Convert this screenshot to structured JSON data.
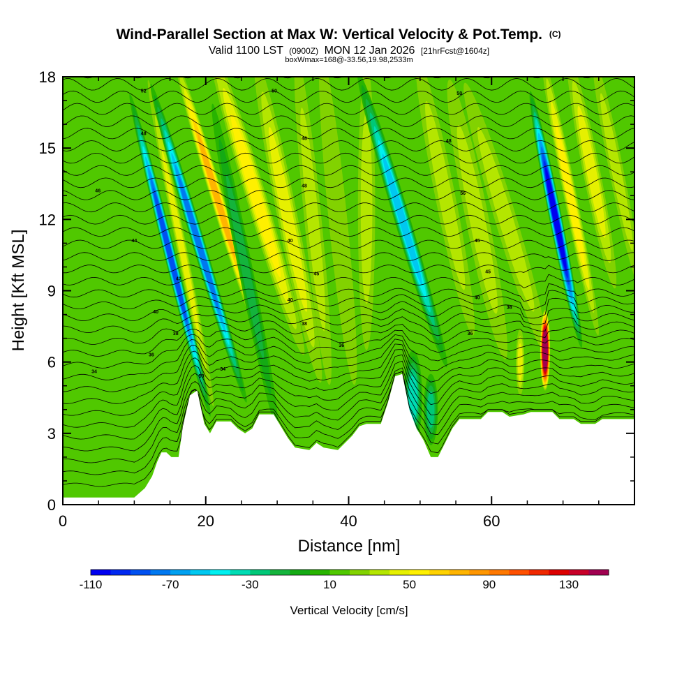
{
  "chart_data": {
    "type": "heatmap",
    "title": "Wind-Parallel Section at Max W: Vertical Velocity & Pot.Temp.",
    "title_mark": "(C)",
    "subtitle_prefix": "Valid 1100 LST",
    "subtitle_utc": "(0900Z)",
    "subtitle_date": "MON 12 Jan 2026",
    "subtitle_run": "[21hrFcst@1604z]",
    "box_wmax": "boxWmax=168@-33.56,19.98,2533m",
    "xlabel": "Distance [nm]",
    "ylabel": "Height [Kft MSL]",
    "xlim": [
      0,
      80
    ],
    "ylim": [
      0,
      18
    ],
    "x_ticks": [
      0,
      20,
      40,
      60
    ],
    "y_ticks": [
      0,
      3,
      6,
      9,
      12,
      15,
      18
    ],
    "colorbar": {
      "label": "Vertical Velocity [cm/s]",
      "min": -110,
      "max": 150,
      "step": 10,
      "tick_values": [
        -110,
        -70,
        -30,
        10,
        50,
        90,
        130
      ],
      "colors": [
        "#0000f0",
        "#0028f0",
        "#0050f0",
        "#0078f0",
        "#00a0f0",
        "#00c8f0",
        "#00f0f0",
        "#00dcb4",
        "#00c878",
        "#14b43c",
        "#14aa14",
        "#28b400",
        "#50c800",
        "#82d200",
        "#b4e600",
        "#e6f000",
        "#fff000",
        "#ffd200",
        "#ffb400",
        "#ff9600",
        "#ff7800",
        "#ff5000",
        "#f02800",
        "#dc0000",
        "#c80028",
        "#a00050"
      ]
    },
    "background_velocity": 12,
    "terrain_kft": [
      [
        0,
        0.3
      ],
      [
        10,
        0.3
      ],
      [
        11.5,
        0.7
      ],
      [
        12.5,
        1.2
      ],
      [
        13.2,
        1.8
      ],
      [
        13.8,
        2.2
      ],
      [
        14.5,
        2.2
      ],
      [
        15.2,
        2.0
      ],
      [
        16.2,
        2.0
      ],
      [
        16.8,
        3.3
      ],
      [
        17.8,
        4.6
      ],
      [
        18.8,
        4.8
      ],
      [
        19.8,
        3.4
      ],
      [
        20.6,
        3.0
      ],
      [
        21.5,
        3.5
      ],
      [
        23.5,
        3.5
      ],
      [
        24.5,
        3.2
      ],
      [
        25.5,
        3.0
      ],
      [
        26.5,
        3.2
      ],
      [
        27.5,
        3.8
      ],
      [
        29.5,
        3.8
      ],
      [
        30.5,
        3.3
      ],
      [
        31.5,
        2.8
      ],
      [
        32.5,
        2.4
      ],
      [
        34.5,
        2.3
      ],
      [
        35.5,
        2.6
      ],
      [
        36.5,
        2.4
      ],
      [
        38.5,
        2.3
      ],
      [
        39.5,
        2.6
      ],
      [
        40.5,
        2.9
      ],
      [
        41.5,
        3.3
      ],
      [
        42.5,
        3.4
      ],
      [
        44.5,
        3.4
      ],
      [
        45.5,
        4.3
      ],
      [
        46.5,
        5.4
      ],
      [
        47.5,
        5.5
      ],
      [
        48.5,
        4.0
      ],
      [
        49.5,
        3.2
      ],
      [
        50.5,
        2.7
      ],
      [
        51.5,
        2.0
      ],
      [
        52.5,
        2.0
      ],
      [
        53.5,
        2.6
      ],
      [
        54.5,
        3.2
      ],
      [
        55.5,
        3.6
      ],
      [
        58.5,
        3.6
      ],
      [
        59.5,
        3.9
      ],
      [
        61.5,
        3.9
      ],
      [
        62.5,
        3.7
      ],
      [
        64.5,
        3.8
      ],
      [
        65.5,
        3.9
      ],
      [
        68.5,
        3.9
      ],
      [
        69.5,
        3.6
      ],
      [
        71.5,
        3.6
      ],
      [
        72.5,
        3.4
      ],
      [
        74.5,
        3.4
      ],
      [
        75.5,
        3.6
      ],
      [
        80,
        3.6
      ]
    ],
    "velocity_features": [
      {
        "x": 15.0,
        "y_center": 10.5,
        "x_width": 0.8,
        "y_width": 7.0,
        "tilt": -0.25,
        "value": -85
      },
      {
        "x": 16.5,
        "y_center": 11.0,
        "x_width": 0.7,
        "y_width": 7.0,
        "tilt": -0.2,
        "value": 40
      },
      {
        "x": 19.0,
        "y_center": 11.0,
        "x_width": 0.9,
        "y_width": 7.0,
        "tilt": -0.3,
        "value": -75
      },
      {
        "x": 21.5,
        "y_center": 13.0,
        "x_width": 0.9,
        "y_width": 6.0,
        "tilt": -0.3,
        "value": 75
      },
      {
        "x": 25.5,
        "y_center": 10.0,
        "x_width": 1.0,
        "y_width": 7.0,
        "tilt": -0.2,
        "value": -20
      },
      {
        "x": 27.0,
        "y_center": 13.0,
        "x_width": 1.4,
        "y_width": 7.0,
        "tilt": -0.3,
        "value": 50
      },
      {
        "x": 31.5,
        "y_center": 12.0,
        "x_width": 1.4,
        "y_width": 7.0,
        "tilt": -0.2,
        "value": 40
      },
      {
        "x": 35.0,
        "y_center": 12.0,
        "x_width": 1.2,
        "y_width": 7.0,
        "tilt": -0.1,
        "value": 35
      },
      {
        "x": 38.5,
        "y_center": 12.0,
        "x_width": 1.3,
        "y_width": 7.0,
        "tilt": -0.1,
        "value": 25
      },
      {
        "x": 42.5,
        "y_center": 12.5,
        "x_width": 1.2,
        "y_width": 6.0,
        "tilt": 0.0,
        "value": 30
      },
      {
        "x": 47.5,
        "y_center": 12.0,
        "x_width": 1.1,
        "y_width": 6.5,
        "tilt": -0.3,
        "value": -60
      },
      {
        "x": 49.0,
        "y_center": 4.5,
        "x_width": 1.3,
        "y_width": 2.0,
        "tilt": 0.0,
        "value": -35
      },
      {
        "x": 51.5,
        "y_center": 4.0,
        "x_width": 1.0,
        "y_width": 1.5,
        "tilt": 0.0,
        "value": -30
      },
      {
        "x": 53.5,
        "y_center": 13.0,
        "x_width": 1.4,
        "y_width": 6.0,
        "tilt": -0.2,
        "value": 35
      },
      {
        "x": 58.0,
        "y_center": 12.0,
        "x_width": 1.6,
        "y_width": 6.0,
        "tilt": -0.2,
        "value": 35
      },
      {
        "x": 62.0,
        "y_center": 12.0,
        "x_width": 1.5,
        "y_width": 6.0,
        "tilt": -0.3,
        "value": 30
      },
      {
        "x": 64.0,
        "y_center": 6.0,
        "x_width": 0.6,
        "y_width": 1.4,
        "tilt": 0.0,
        "value": 45
      },
      {
        "x": 67.5,
        "y_center": 6.5,
        "x_width": 0.7,
        "y_width": 1.7,
        "tilt": 0.0,
        "value": 168
      },
      {
        "x": 69.0,
        "y_center": 12.0,
        "x_width": 0.9,
        "y_width": 5.5,
        "tilt": -0.2,
        "value": -110
      },
      {
        "x": 71.0,
        "y_center": 13.0,
        "x_width": 0.9,
        "y_width": 6.0,
        "tilt": -0.2,
        "value": 50
      },
      {
        "x": 74.0,
        "y_center": 14.0,
        "x_width": 1.2,
        "y_width": 5.0,
        "tilt": -0.2,
        "value": 40
      },
      {
        "x": 77.5,
        "y_center": 14.0,
        "x_width": 1.0,
        "y_width": 5.0,
        "tilt": -0.2,
        "value": 30
      }
    ],
    "theta_contours": {
      "levels_first": 30,
      "levels_last": 64,
      "levels_step": 1,
      "labels": [
        {
          "text": "34",
          "x": 4.4,
          "y": 5.6
        },
        {
          "text": "36",
          "x": 12.4,
          "y": 6.3
        },
        {
          "text": "38",
          "x": 15.8,
          "y": 7.2
        },
        {
          "text": "40",
          "x": 13.0,
          "y": 8.1
        },
        {
          "text": "42",
          "x": 16.2,
          "y": 9.5
        },
        {
          "text": "44",
          "x": 10.0,
          "y": 11.1
        },
        {
          "text": "46",
          "x": 4.9,
          "y": 13.2
        },
        {
          "text": "48",
          "x": 11.3,
          "y": 15.6
        },
        {
          "text": "52",
          "x": 11.3,
          "y": 17.4
        },
        {
          "text": "50",
          "x": 19.4,
          "y": 5.4
        },
        {
          "text": "34",
          "x": 22.4,
          "y": 5.7
        },
        {
          "text": "40",
          "x": 31.8,
          "y": 11.1
        },
        {
          "text": "45",
          "x": 35.5,
          "y": 9.7
        },
        {
          "text": "40",
          "x": 31.8,
          "y": 8.6
        },
        {
          "text": "38",
          "x": 33.8,
          "y": 7.6
        },
        {
          "text": "36",
          "x": 39.0,
          "y": 6.7
        },
        {
          "text": "48",
          "x": 33.8,
          "y": 13.4
        },
        {
          "text": "48",
          "x": 33.8,
          "y": 15.4
        },
        {
          "text": "50",
          "x": 29.6,
          "y": 17.4
        },
        {
          "text": "56",
          "x": 56.0,
          "y": 13.1
        },
        {
          "text": "45",
          "x": 58.0,
          "y": 11.1
        },
        {
          "text": "45",
          "x": 59.5,
          "y": 9.8
        },
        {
          "text": "40",
          "x": 58.0,
          "y": 8.7
        },
        {
          "text": "38",
          "x": 62.5,
          "y": 8.3
        },
        {
          "text": "36",
          "x": 57.0,
          "y": 7.2
        },
        {
          "text": "48",
          "x": 54.0,
          "y": 15.3
        },
        {
          "text": "50",
          "x": 55.5,
          "y": 17.3
        }
      ]
    }
  }
}
